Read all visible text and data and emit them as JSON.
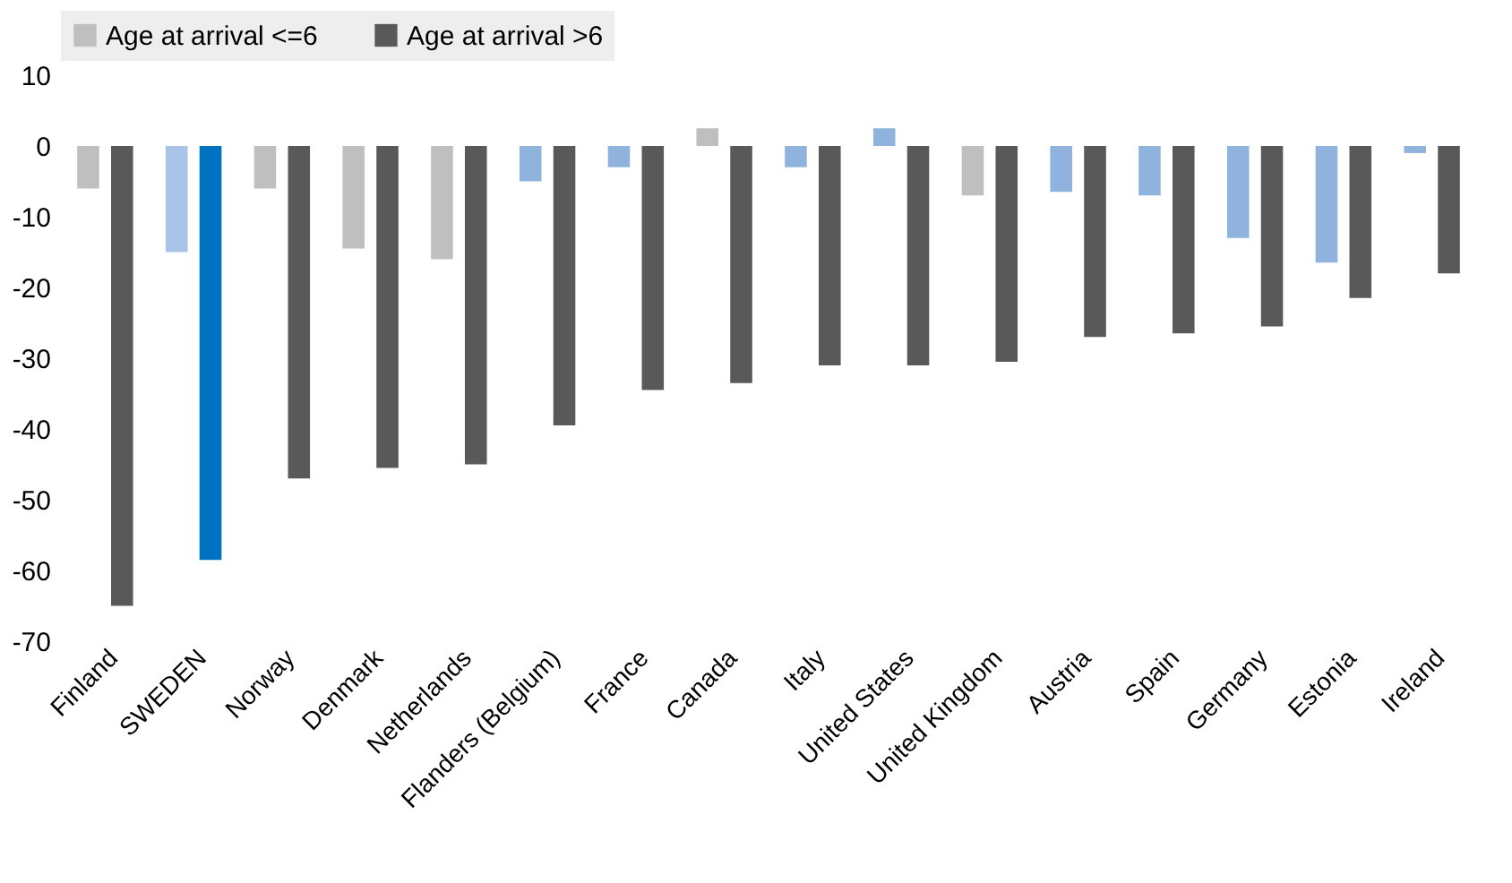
{
  "chart_data": {
    "type": "bar",
    "categories": [
      "Finland",
      "SWEDEN",
      "Norway",
      "Denmark",
      "Netherlands",
      "Flanders (Belgium)",
      "France",
      "Canada",
      "Italy",
      "United States",
      "United Kingdom",
      "Austria",
      "Spain",
      "Germany",
      "Estonia",
      "Ireland"
    ],
    "series": [
      {
        "name": "Age at arrival <=6",
        "color": "#bfbfbf",
        "values": [
          -6,
          -15,
          -6,
          -14.5,
          -16,
          -5,
          -3,
          2.5,
          -3,
          2.5,
          -7,
          -6.5,
          -7,
          -13,
          -16.5,
          -1
        ],
        "colors": [
          "#bfbfbf",
          "#a9c4e8",
          "#bfbfbf",
          "#bfbfbf",
          "#bfbfbf",
          "#8fb3dd",
          "#8fb3dd",
          "#bfbfbf",
          "#8fb3dd",
          "#8fb3dd",
          "#bfbfbf",
          "#8fb3dd",
          "#8fb3dd",
          "#8fb3dd",
          "#8fb3dd",
          "#8fb3dd"
        ]
      },
      {
        "name": "Age at arrival >6",
        "color": "#595959",
        "values": [
          -65,
          -58.5,
          -47,
          -45.5,
          -45,
          -39.5,
          -34.5,
          -33.5,
          -31,
          -31,
          -30.5,
          -27,
          -26.5,
          -25.5,
          -21.5,
          -18
        ],
        "colors": [
          "#595959",
          "#0070c0",
          "#595959",
          "#595959",
          "#595959",
          "#595959",
          "#595959",
          "#595959",
          "#595959",
          "#595959",
          "#595959",
          "#595959",
          "#595959",
          "#595959",
          "#595959",
          "#595959"
        ]
      }
    ],
    "ylim": [
      -70,
      10
    ],
    "yticks": [
      -70,
      -60,
      -50,
      -40,
      -30,
      -20,
      -10,
      0,
      10
    ],
    "legend": "top"
  }
}
